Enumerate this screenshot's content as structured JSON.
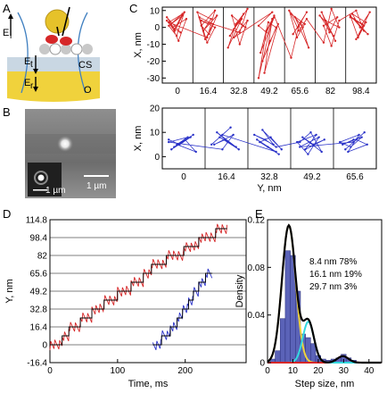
{
  "panels": {
    "a": {
      "letter": "A",
      "labels": [
        "E",
        "i",
        "E",
        "t",
        "E",
        "r",
        "CS",
        "O"
      ]
    },
    "b": {
      "letter": "B",
      "scalebar_large": "1 µm",
      "scalebar_small": "1 µm"
    },
    "c": {
      "letter": "C"
    },
    "d": {
      "letter": "D"
    },
    "e": {
      "letter": "E"
    }
  },
  "colors": {
    "red": "#d62728",
    "blue": "#2a32c8",
    "black": "#000000",
    "bar": "#5b63b8",
    "cyan": "#33d9e0",
    "yellow": "#f0d23c"
  },
  "chart_data": [
    {
      "id": "C-top",
      "type": "line",
      "ylabel": "X, nm",
      "xlabel": "",
      "ylim": [
        -33,
        12
      ],
      "yticks": [
        10,
        0,
        -10,
        -20,
        -30
      ],
      "xticks": [
        "0",
        "16.4",
        "32.8",
        "49.2",
        "65.6",
        "82",
        "98.4"
      ],
      "dwell_positions": [
        0,
        16.4,
        32.8,
        49.2,
        65.6,
        82,
        98.4
      ],
      "series": [
        {
          "color": "#d62728",
          "y": [
            4,
            -2,
            7,
            1,
            -5,
            9,
            2,
            -8,
            5,
            0,
            -3,
            6,
            -1,
            8,
            3,
            -6,
            10,
            1,
            -4,
            7,
            -2,
            5,
            9,
            -7,
            2,
            6,
            -9,
            0,
            4,
            -3,
            11,
            -1,
            5,
            -12,
            2,
            8,
            -5,
            3,
            0,
            7,
            -10,
            4,
            -6,
            9,
            1,
            -3,
            6,
            -15,
            3,
            0,
            -20,
            -8,
            2,
            -27,
            5,
            -30,
            -2,
            7,
            -18,
            1,
            9,
            -4,
            3,
            -12,
            6,
            0,
            10,
            -6,
            2,
            8,
            -2,
            5,
            -9,
            11,
            0,
            4,
            -5,
            7,
            2,
            -8,
            9,
            -3,
            6,
            1,
            -11,
            4,
            10,
            -2,
            7,
            -6,
            3,
            8,
            0,
            -4,
            5,
            2,
            9,
            -7,
            1,
            6
          ]
        }
      ]
    },
    {
      "id": "C-bottom",
      "type": "line",
      "ylabel": "X, nm",
      "xlabel": "Y, nm",
      "ylim": [
        -5,
        20
      ],
      "yticks": [
        20,
        10,
        0
      ],
      "xticks": [
        "0",
        "16.4",
        "32.8",
        "49.2",
        "65.6"
      ],
      "dwell_positions": [
        0,
        16.4,
        32.8,
        49.2,
        65.6
      ],
      "series": [
        {
          "color": "#2a32c8",
          "y": [
            7,
            5,
            8,
            3,
            6,
            9,
            4,
            7,
            2,
            5,
            8,
            6,
            3,
            9,
            5,
            7,
            4,
            10,
            6,
            3,
            8,
            12,
            5,
            9,
            2,
            7,
            4,
            1,
            6,
            8,
            3,
            11,
            5,
            9,
            7,
            4,
            6,
            10,
            2,
            8,
            5,
            7,
            3,
            9,
            6,
            1,
            8,
            4,
            6,
            10,
            3,
            7,
            5,
            2,
            9,
            6,
            4,
            8,
            5,
            7
          ]
        }
      ]
    },
    {
      "id": "D",
      "type": "line",
      "xlabel": "Time, ms",
      "ylabel": "Y, nm",
      "xlim": [
        0,
        290
      ],
      "ylim": [
        -16.4,
        114.8
      ],
      "xticks": [
        0,
        100,
        200
      ],
      "yticks": [
        "114.8",
        "98.4",
        "82",
        "65.6",
        "49.2",
        "32.8",
        "16.4",
        "0",
        "-16.4"
      ],
      "steps_red": [
        [
          0,
          0
        ],
        [
          18,
          8.2
        ],
        [
          28,
          16.4
        ],
        [
          45,
          24.6
        ],
        [
          62,
          32.8
        ],
        [
          80,
          41
        ],
        [
          100,
          49.2
        ],
        [
          120,
          57.4
        ],
        [
          138,
          65.6
        ],
        [
          150,
          73.8
        ],
        [
          172,
          82
        ],
        [
          198,
          90.2
        ],
        [
          220,
          98.4
        ],
        [
          245,
          106.6
        ],
        [
          262,
          106.6
        ]
      ],
      "steps_blue": [
        [
          152,
          0
        ],
        [
          165,
          8.2
        ],
        [
          178,
          16.4
        ],
        [
          188,
          24.6
        ],
        [
          196,
          32.8
        ],
        [
          205,
          41
        ],
        [
          212,
          49.2
        ],
        [
          220,
          57.4
        ],
        [
          230,
          65.6
        ],
        [
          240,
          65.6
        ]
      ],
      "series": [
        {
          "name": "",
          "color": "#d62728"
        },
        {
          "name": "",
          "color": "#2a32c8"
        }
      ]
    },
    {
      "id": "E",
      "type": "bar",
      "xlabel": "Step size, nm",
      "ylabel": "Density",
      "xlim": [
        0,
        45
      ],
      "ylim": [
        0,
        0.12
      ],
      "xticks": [
        0,
        10,
        20,
        30,
        40
      ],
      "yticks": [
        "0.12",
        "0.08",
        "0.04",
        "0"
      ],
      "bins_x": [
        2,
        4,
        6,
        8,
        10,
        12,
        14,
        16,
        18,
        20,
        22,
        24,
        26,
        28,
        30,
        32,
        34
      ],
      "bins_density": [
        0.003,
        0.01,
        0.037,
        0.094,
        0.09,
        0.06,
        0.024,
        0.021,
        0.016,
        0.006,
        0.003,
        0.002,
        0.003,
        0.004,
        0.007,
        0.004,
        0.002
      ],
      "components": [
        {
          "label": "8.4 nm 78%",
          "mean": 8.4,
          "weight": 0.78,
          "sd": 2.7
        },
        {
          "label": "16.1 nm 19%",
          "mean": 16.1,
          "weight": 0.19,
          "sd": 2.2
        },
        {
          "label": "29.7 nm 3%",
          "mean": 29.7,
          "weight": 0.03,
          "sd": 2.2
        }
      ]
    }
  ]
}
